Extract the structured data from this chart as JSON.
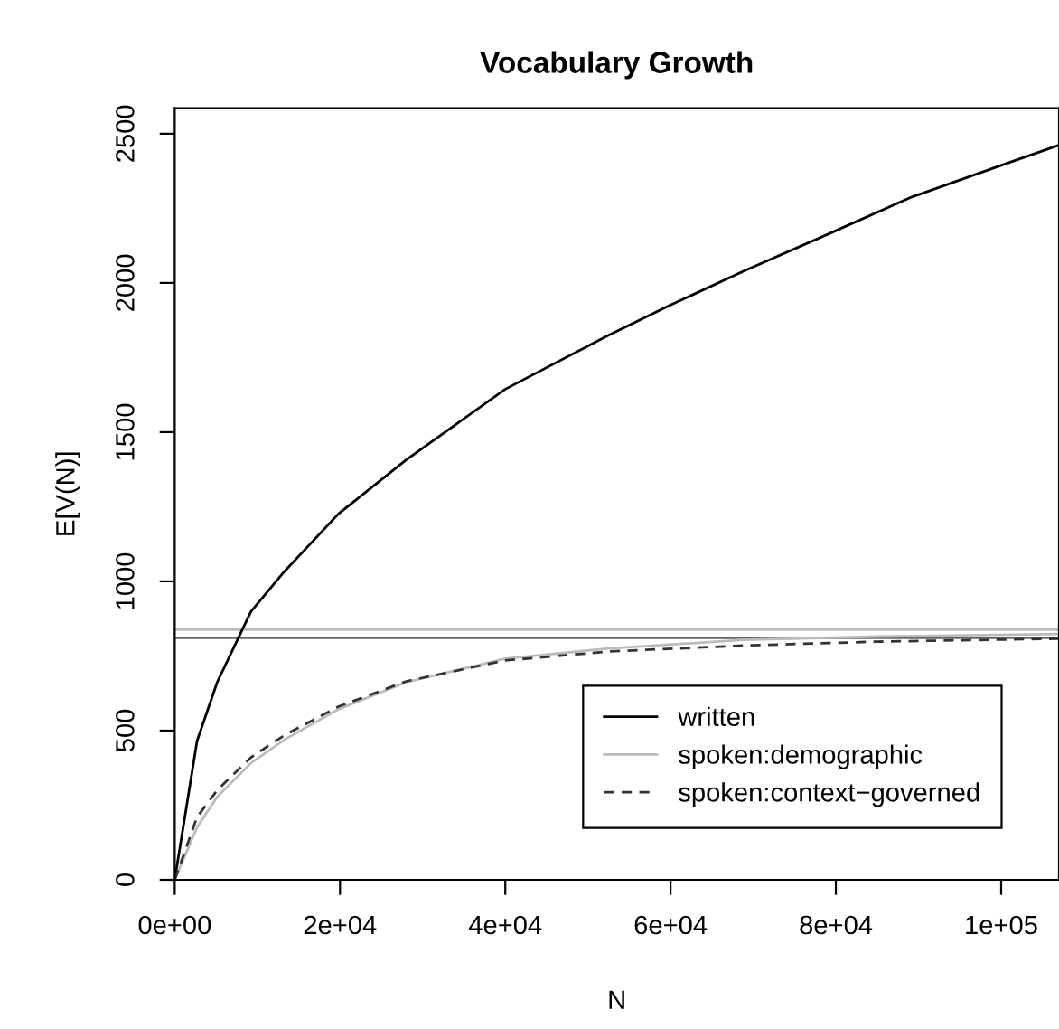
{
  "chart_data": {
    "type": "line",
    "title": "Vocabulary Growth",
    "xlabel": "N",
    "ylabel": "E[V(N)]",
    "xlim": [
      0,
      107000
    ],
    "ylim": [
      0,
      2586
    ],
    "xticks": [
      {
        "value": 0,
        "label": "0e+00"
      },
      {
        "value": 20000,
        "label": "2e+04"
      },
      {
        "value": 40000,
        "label": "4e+04"
      },
      {
        "value": 60000,
        "label": "6e+04"
      },
      {
        "value": 80000,
        "label": "8e+04"
      },
      {
        "value": 100000,
        "label": "1e+05"
      }
    ],
    "yticks": [
      0,
      500,
      1000,
      1500,
      2000,
      2500
    ],
    "grid": false,
    "legend": "bottom right",
    "marker": "none",
    "series": [
      {
        "name": "written",
        "color": "#000000",
        "line_style": "solid",
        "x": [
          0,
          2700,
          5140,
          9220,
          13300,
          19800,
          28000,
          40000,
          52500,
          60000,
          68800,
          80000,
          89200,
          100000,
          107000
        ],
        "values": [
          0,
          465,
          662,
          899,
          1034,
          1226,
          1407,
          1644,
          1825,
          1926,
          2039,
          2175,
          2288,
          2394,
          2462
        ]
      },
      {
        "name": "spoken:demographic",
        "color": "#bbbbbb",
        "line_style": "solid",
        "x": [
          0,
          2700,
          5140,
          9220,
          13300,
          19800,
          28000,
          40000,
          52500,
          68800,
          85000,
          107000
        ],
        "values": [
          0,
          176,
          278,
          391,
          470,
          571,
          662,
          741,
          775,
          804,
          815,
          824
        ]
      },
      {
        "name": "spoken:context−governed",
        "color": "#333333",
        "line_style": "dashed",
        "x": [
          0,
          2700,
          5140,
          9220,
          13300,
          19800,
          28000,
          40000,
          52500,
          68800,
          85000,
          107000
        ],
        "values": [
          0,
          210,
          300,
          410,
          485,
          580,
          665,
          735,
          765,
          785,
          798,
          808
        ]
      }
    ],
    "ref_lines": [
      {
        "axis": "y",
        "value": 838,
        "color": "#bbbbbb"
      },
      {
        "axis": "y",
        "value": 811,
        "color": "#666666"
      }
    ]
  }
}
